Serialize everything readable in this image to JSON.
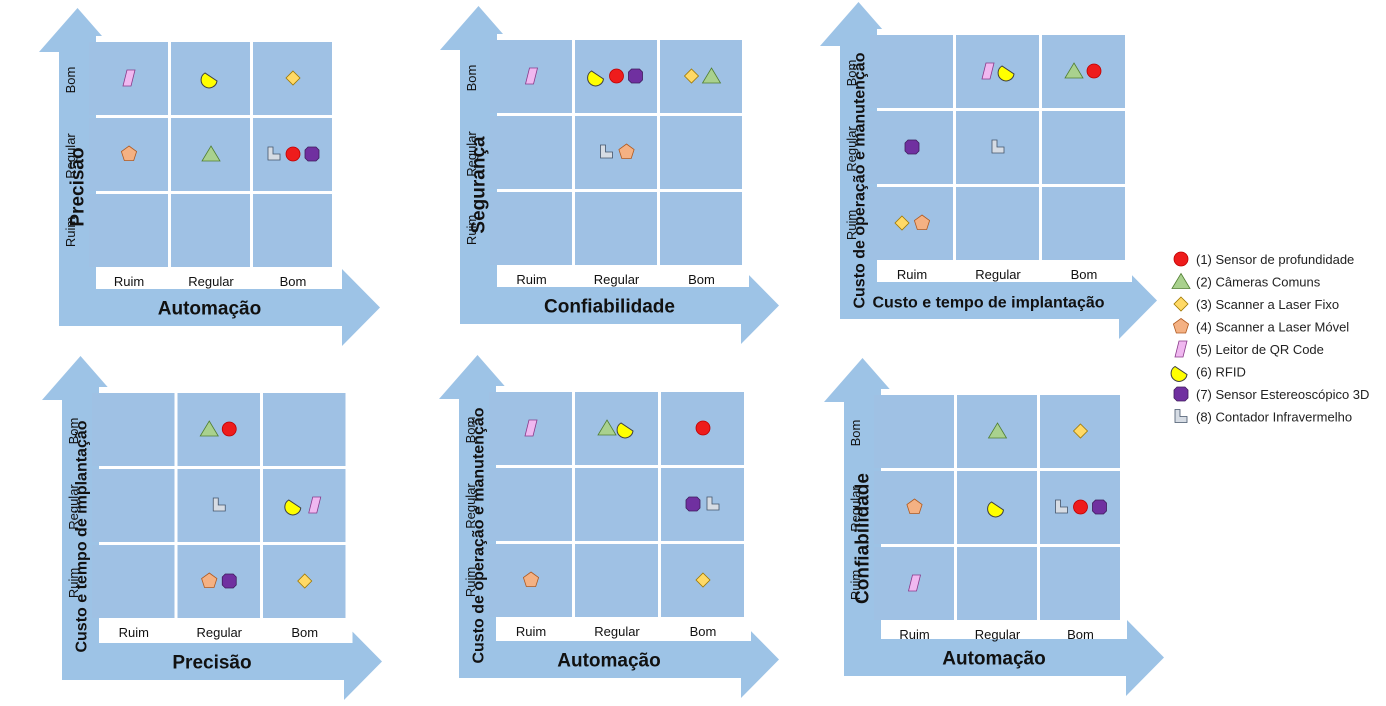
{
  "chart_data": {
    "type": "scatter",
    "levels": [
      "Ruim",
      "Regular",
      "Bom"
    ],
    "legend_position": "right",
    "legend": [
      {
        "id": 1,
        "label": "(1) Sensor de profundidade",
        "shape": "circle",
        "color": "#ee1c1c"
      },
      {
        "id": 2,
        "label": "(2) Câmeras Comuns",
        "shape": "triangle",
        "color": "#a9d18e"
      },
      {
        "id": 3,
        "label": "(3) Scanner a Laser Fixo",
        "shape": "diamond",
        "color": "#ffd966"
      },
      {
        "id": 4,
        "label": "(4) Scanner a Laser Móvel",
        "shape": "pentagon",
        "color": "#f4b183"
      },
      {
        "id": 5,
        "label": "(5) Leitor de QR Code",
        "shape": "parallelogram",
        "color": "#f0b8f0"
      },
      {
        "id": 6,
        "label": "(6) RFID",
        "shape": "chord",
        "color": "#ffff00"
      },
      {
        "id": 7,
        "label": "(7) Sensor Estereoscópico 3D",
        "shape": "octagon",
        "color": "#7030a0"
      },
      {
        "id": 8,
        "label": "(8) Contador Infravermelho",
        "shape": "lshape",
        "color": "#d6dce4"
      }
    ],
    "panels": [
      {
        "xlabel": "Automação",
        "ylabel": "Precisão",
        "points": [
          [
            5,
            "Ruim",
            "Bom"
          ],
          [
            6,
            "Regular",
            "Bom"
          ],
          [
            3,
            "Bom",
            "Bom"
          ],
          [
            4,
            "Ruim",
            "Regular"
          ],
          [
            2,
            "Regular",
            "Regular"
          ],
          [
            8,
            "Bom",
            "Regular"
          ],
          [
            1,
            "Bom",
            "Regular"
          ],
          [
            7,
            "Bom",
            "Regular"
          ]
        ]
      },
      {
        "xlabel": "Confiabilidade",
        "ylabel": "Segurança",
        "points": [
          [
            5,
            "Ruim",
            "Bom"
          ],
          [
            6,
            "Regular",
            "Bom"
          ],
          [
            1,
            "Regular",
            "Bom"
          ],
          [
            7,
            "Regular",
            "Bom"
          ],
          [
            3,
            "Bom",
            "Bom"
          ],
          [
            2,
            "Bom",
            "Bom"
          ],
          [
            8,
            "Regular",
            "Regular"
          ],
          [
            4,
            "Regular",
            "Regular"
          ]
        ]
      },
      {
        "xlabel": "Custo e tempo de implantação",
        "ylabel": "Custo de operação e manutenção",
        "points": [
          [
            5,
            "Regular",
            "Bom"
          ],
          [
            6,
            "Regular",
            "Bom"
          ],
          [
            2,
            "Bom",
            "Bom"
          ],
          [
            1,
            "Bom",
            "Bom"
          ],
          [
            7,
            "Ruim",
            "Regular"
          ],
          [
            8,
            "Regular",
            "Regular"
          ],
          [
            3,
            "Ruim",
            "Ruim"
          ],
          [
            4,
            "Ruim",
            "Ruim"
          ]
        ]
      },
      {
        "xlabel": "Precisão",
        "ylabel": "Custo e tempo de implantação",
        "points": [
          [
            2,
            "Regular",
            "Bom"
          ],
          [
            1,
            "Regular",
            "Bom"
          ],
          [
            8,
            "Regular",
            "Regular"
          ],
          [
            6,
            "Bom",
            "Regular"
          ],
          [
            5,
            "Bom",
            "Regular"
          ],
          [
            4,
            "Regular",
            "Ruim"
          ],
          [
            7,
            "Regular",
            "Ruim"
          ],
          [
            3,
            "Bom",
            "Ruim"
          ]
        ]
      },
      {
        "xlabel": "Automação",
        "ylabel": "Custo de operação e manutenção",
        "points": [
          [
            5,
            "Ruim",
            "Bom"
          ],
          [
            2,
            "Regular",
            "Bom"
          ],
          [
            6,
            "Regular",
            "Bom"
          ],
          [
            1,
            "Bom",
            "Bom"
          ],
          [
            7,
            "Bom",
            "Regular"
          ],
          [
            8,
            "Bom",
            "Regular"
          ],
          [
            4,
            "Ruim",
            "Ruim"
          ],
          [
            3,
            "Bom",
            "Ruim"
          ]
        ]
      },
      {
        "xlabel": "Automação",
        "ylabel": "Confiabilidade",
        "points": [
          [
            2,
            "Regular",
            "Bom"
          ],
          [
            3,
            "Bom",
            "Bom"
          ],
          [
            4,
            "Ruim",
            "Regular"
          ],
          [
            6,
            "Regular",
            "Regular"
          ],
          [
            8,
            "Bom",
            "Regular"
          ],
          [
            1,
            "Bom",
            "Regular"
          ],
          [
            7,
            "Bom",
            "Regular"
          ],
          [
            5,
            "Ruim",
            "Ruim"
          ]
        ]
      }
    ]
  }
}
